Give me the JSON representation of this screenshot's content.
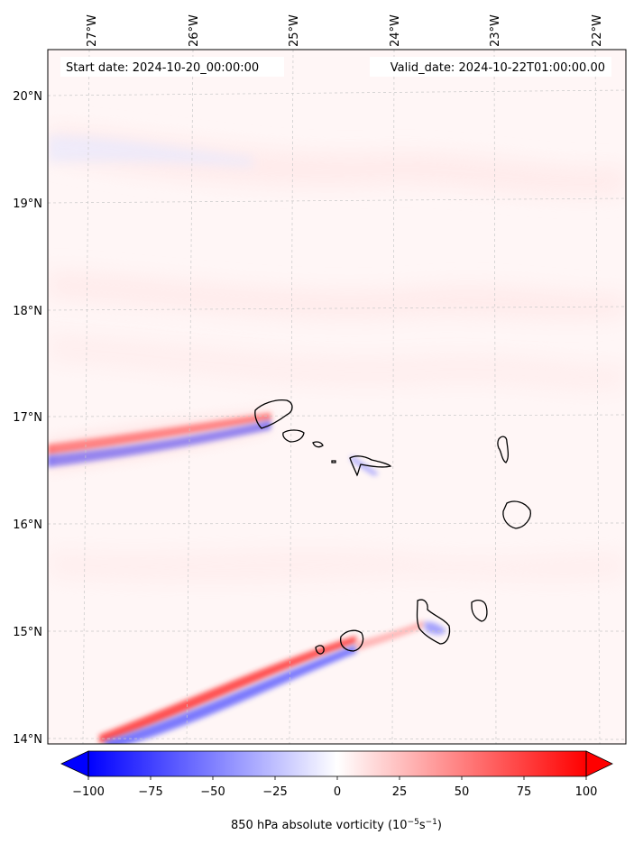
{
  "map": {
    "start_date": "Start date: 2024-10-20_00:00:00",
    "valid_date": "Valid_date: 2024-10-22T01:00:00.00",
    "lon_labels": [
      "27°W",
      "26°W",
      "25°W",
      "24°W",
      "23°W",
      "22°W"
    ],
    "lat_labels": [
      "20°N",
      "19°N",
      "18°N",
      "17°N",
      "16°N",
      "15°N",
      "14°N"
    ],
    "colorbar": {
      "label": "850 hPa absolute vorticity (10",
      "label_exp1": "−5",
      "label_mid": "s",
      "label_exp2": "−1",
      "label_end": ")",
      "ticks": [
        "−100",
        "−75",
        "−50",
        "−25",
        "0",
        "25",
        "50",
        "75",
        "100"
      ],
      "range": [
        -100,
        100
      ],
      "cmap": "bwr",
      "extend": "both"
    },
    "colors": {
      "negative": "#0000ff",
      "zero": "#ffffff",
      "positive": "#ff0000",
      "coastline": "#000000"
    }
  }
}
